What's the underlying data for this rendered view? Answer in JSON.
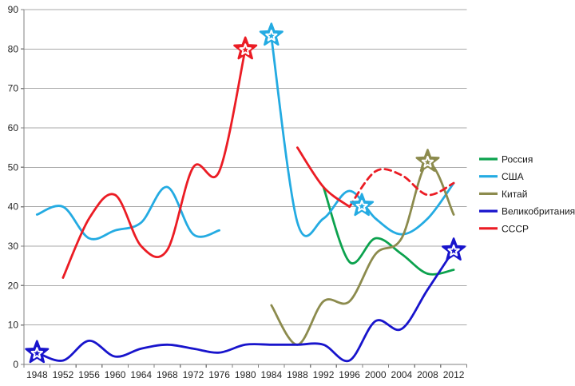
{
  "chart_data": {
    "type": "line",
    "title": "",
    "xlabel": "",
    "ylabel": "",
    "ylim": [
      0,
      90
    ],
    "ytick_step": 10,
    "y_tick_labels": [
      "0",
      "10",
      "20",
      "30",
      "40",
      "50",
      "60",
      "70",
      "80",
      "90"
    ],
    "x_tick_labels": [
      "1948",
      "1952",
      "1956",
      "1960",
      "1964",
      "1968",
      "1972",
      "1976",
      "1980",
      "1984",
      "1988",
      "1992",
      "1996",
      "2000",
      "2004",
      "2008",
      "2012"
    ],
    "grid": true,
    "smoothed_lines": true,
    "legend_position": "right",
    "colors": {
      "gridline": "#A8A8A8",
      "axis": "#808080",
      "tick_text": "#262626",
      "marker_inner": "#FFFFFF"
    },
    "series": [
      {
        "key": "russia",
        "name": "Россия",
        "color": "#0CA24E",
        "segments": [
          {
            "dashed": false,
            "points": [
              [
                1992,
                45
              ],
              [
                1996,
                26
              ],
              [
                2000,
                32
              ],
              [
                2004,
                28
              ],
              [
                2008,
                23
              ],
              [
                2012,
                24
              ]
            ]
          }
        ]
      },
      {
        "key": "usa",
        "name": "США",
        "color": "#24ABE2",
        "segments": [
          {
            "dashed": false,
            "points": [
              [
                1948,
                38
              ],
              [
                1952,
                40
              ],
              [
                1956,
                32
              ],
              [
                1960,
                34
              ],
              [
                1964,
                36
              ],
              [
                1968,
                45
              ],
              [
                1972,
                33
              ],
              [
                1976,
                34
              ]
            ]
          },
          {
            "dashed": false,
            "points": [
              [
                1984,
                83
              ],
              [
                1988,
                36
              ],
              [
                1992,
                37
              ],
              [
                1996,
                44
              ],
              [
                2000,
                37
              ],
              [
                2004,
                33
              ],
              [
                2008,
                37
              ],
              [
                2012,
                46
              ]
            ]
          }
        ]
      },
      {
        "key": "china",
        "name": "Китай",
        "color": "#8C8B4D",
        "segments": [
          {
            "dashed": false,
            "points": [
              [
                1984,
                15
              ],
              [
                1988,
                5
              ],
              [
                1992,
                16
              ],
              [
                1996,
                16
              ],
              [
                2000,
                28
              ],
              [
                2004,
                32
              ],
              [
                2008,
                51
              ],
              [
                2012,
                38
              ]
            ]
          }
        ]
      },
      {
        "key": "uk",
        "name": "Великобритания",
        "color": "#1814CC",
        "segments": [
          {
            "dashed": false,
            "points": [
              [
                1948,
                3
              ],
              [
                1952,
                1
              ],
              [
                1956,
                6
              ],
              [
                1960,
                2
              ],
              [
                1964,
                4
              ],
              [
                1968,
                5
              ],
              [
                1972,
                4
              ],
              [
                1976,
                3
              ],
              [
                1980,
                5
              ],
              [
                1984,
                5
              ],
              [
                1988,
                5
              ],
              [
                1992,
                5
              ],
              [
                1996,
                1
              ],
              [
                2000,
                11
              ],
              [
                2004,
                9
              ],
              [
                2008,
                19
              ],
              [
                2012,
                29
              ]
            ]
          }
        ]
      },
      {
        "key": "ussr",
        "name": "СССР",
        "color": "#EB1C24",
        "segments": [
          {
            "dashed": false,
            "points": [
              [
                1952,
                22
              ],
              [
                1956,
                37
              ],
              [
                1960,
                43
              ],
              [
                1964,
                30
              ],
              [
                1968,
                29
              ],
              [
                1972,
                50
              ],
              [
                1976,
                49
              ],
              [
                1980,
                80
              ]
            ]
          },
          {
            "dashed": false,
            "points": [
              [
                1988,
                55
              ],
              [
                1992,
                45
              ],
              [
                1996,
                40
              ]
            ]
          },
          {
            "dashed": true,
            "points": [
              [
                1996,
                40
              ],
              [
                2000,
                49
              ],
              [
                2004,
                48
              ],
              [
                2008,
                43
              ],
              [
                2012,
                46
              ]
            ]
          }
        ]
      }
    ],
    "host_markers": [
      {
        "series": "uk",
        "year": 1948,
        "value": 3
      },
      {
        "series": "ussr",
        "year": 1980,
        "value": 80
      },
      {
        "series": "usa",
        "year": 1984,
        "value": 83.5
      },
      {
        "series": "usa",
        "year": 1997.9,
        "value": 40.3
      },
      {
        "series": "china",
        "year": 2008,
        "value": 51.5
      },
      {
        "series": "uk",
        "year": 2012,
        "value": 29
      }
    ]
  }
}
